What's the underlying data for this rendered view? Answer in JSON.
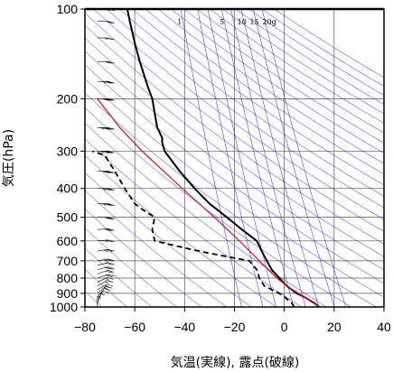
{
  "chart_data": {
    "type": "line",
    "title": "",
    "xlabel": "気温(実線), 露点(破線)",
    "ylabel": "気圧(hPa)",
    "xlim": [
      -80,
      40
    ],
    "ylim": [
      1000,
      100
    ],
    "y_scale": "log",
    "grid": true,
    "x_ticks": [
      "−80",
      "−60",
      "−40",
      "−20",
      "0",
      "20",
      "40"
    ],
    "y_ticks": [
      "100",
      "200",
      "300",
      "400",
      "500",
      "600",
      "700",
      "800",
      "900",
      "1000"
    ],
    "mixing_ratio_labels": [
      "1",
      "5",
      "10",
      "15",
      "20g"
    ],
    "colors": {
      "temperature": "#000000",
      "dewpoint": "#000000",
      "parcel": "#cc1f2f",
      "dry_adiabats": "#1c1cd6",
      "grid": "#444444"
    },
    "series": [
      {
        "key": "temperature",
        "points": [
          [
            1000,
            14
          ],
          [
            970,
            12
          ],
          [
            925,
            8
          ],
          [
            900,
            5
          ],
          [
            850,
            1
          ],
          [
            800,
            -2
          ],
          [
            750,
            -5
          ],
          [
            700,
            -7
          ],
          [
            650,
            -9
          ],
          [
            600,
            -11
          ],
          [
            550,
            -17
          ],
          [
            500,
            -23
          ],
          [
            450,
            -30
          ],
          [
            400,
            -36
          ],
          [
            350,
            -42
          ],
          [
            300,
            -48
          ],
          [
            280,
            -49
          ],
          [
            270,
            -49
          ],
          [
            250,
            -51
          ],
          [
            200,
            -53
          ],
          [
            180,
            -55
          ],
          [
            150,
            -58
          ],
          [
            130,
            -60
          ],
          [
            110,
            -62
          ],
          [
            100,
            -63
          ]
        ]
      },
      {
        "key": "dewpoint",
        "points": [
          [
            1000,
            4
          ],
          [
            970,
            3
          ],
          [
            925,
            0
          ],
          [
            900,
            -2
          ],
          [
            850,
            -8
          ],
          [
            800,
            -10
          ],
          [
            750,
            -11
          ],
          [
            700,
            -14
          ],
          [
            650,
            -34
          ],
          [
            600,
            -52
          ],
          [
            550,
            -53
          ],
          [
            500,
            -52
          ],
          [
            470,
            -57
          ],
          [
            450,
            -60
          ],
          [
            400,
            -64
          ],
          [
            350,
            -68
          ],
          [
            310,
            -72
          ],
          [
            300,
            -77
          ]
        ]
      },
      {
        "key": "parcel",
        "points": [
          [
            1000,
            14
          ],
          [
            925,
            8
          ],
          [
            850,
            1
          ],
          [
            800,
            -3
          ],
          [
            700,
            -10
          ],
          [
            600,
            -18
          ],
          [
            500,
            -28
          ],
          [
            400,
            -41
          ],
          [
            300,
            -57
          ],
          [
            250,
            -66
          ],
          [
            200,
            -75
          ]
        ]
      }
    ],
    "wind_barbs": [
      {
        "p": 1000,
        "dir": 180,
        "spd": 5
      },
      {
        "p": 975,
        "dir": 200,
        "spd": 5
      },
      {
        "p": 950,
        "dir": 210,
        "spd": 10
      },
      {
        "p": 925,
        "dir": 220,
        "spd": 10
      },
      {
        "p": 900,
        "dir": 230,
        "spd": 15
      },
      {
        "p": 875,
        "dir": 240,
        "spd": 15
      },
      {
        "p": 850,
        "dir": 240,
        "spd": 15
      },
      {
        "p": 825,
        "dir": 245,
        "spd": 15
      },
      {
        "p": 800,
        "dir": 250,
        "spd": 20
      },
      {
        "p": 775,
        "dir": 250,
        "spd": 20
      },
      {
        "p": 750,
        "dir": 255,
        "spd": 20
      },
      {
        "p": 725,
        "dir": 255,
        "spd": 20
      },
      {
        "p": 700,
        "dir": 260,
        "spd": 25
      },
      {
        "p": 650,
        "dir": 260,
        "spd": 25
      },
      {
        "p": 600,
        "dir": 265,
        "spd": 25
      },
      {
        "p": 550,
        "dir": 265,
        "spd": 30
      },
      {
        "p": 500,
        "dir": 270,
        "spd": 30
      },
      {
        "p": 450,
        "dir": 270,
        "spd": 35
      },
      {
        "p": 400,
        "dir": 270,
        "spd": 35
      },
      {
        "p": 350,
        "dir": 270,
        "spd": 40
      },
      {
        "p": 300,
        "dir": 270,
        "spd": 45
      },
      {
        "p": 250,
        "dir": 270,
        "spd": 45
      },
      {
        "p": 200,
        "dir": 270,
        "spd": 40
      },
      {
        "p": 175,
        "dir": 270,
        "spd": 35
      },
      {
        "p": 150,
        "dir": 270,
        "spd": 30
      },
      {
        "p": 125,
        "dir": 270,
        "spd": 25
      },
      {
        "p": 110,
        "dir": 270,
        "spd": 20
      },
      {
        "p": 100,
        "dir": 270,
        "spd": 15
      }
    ]
  }
}
